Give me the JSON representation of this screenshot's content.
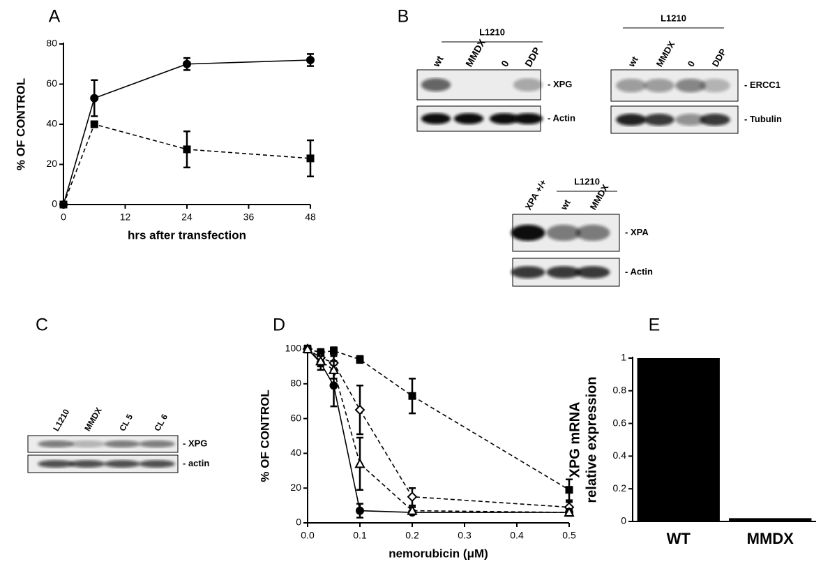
{
  "chart_data": [
    {
      "type": "line",
      "panel": "A",
      "xlabel": "hrs after transfection",
      "ylabel": "% OF CONTROL",
      "x": [
        0,
        6,
        24,
        48
      ],
      "xlim": [
        0,
        48
      ],
      "xticks": [
        0,
        12,
        24,
        36,
        48
      ],
      "ylim": [
        0,
        80
      ],
      "yticks": [
        0,
        20,
        40,
        60,
        80
      ],
      "series": [
        {
          "marker": "circle",
          "dashed": false,
          "color": "#000000",
          "values": [
            0,
            53,
            70,
            72
          ],
          "errors": [
            0,
            9,
            3,
            3
          ]
        },
        {
          "marker": "square",
          "dashed": true,
          "color": "#000000",
          "values": [
            0,
            40,
            27.5,
            23
          ],
          "errors": [
            0,
            0,
            9,
            9
          ]
        }
      ]
    },
    {
      "type": "line",
      "panel": "D",
      "xlabel": "nemorubicin (μM)",
      "ylabel": "% OF CONTROL",
      "x": [
        0,
        0.025,
        0.05,
        0.1,
        0.2,
        0.5
      ],
      "xlim": [
        0,
        0.5
      ],
      "xticks": [
        {
          "value": 0,
          "label": "0.0"
        },
        0.1,
        0.2,
        0.3,
        0.4,
        0.5
      ],
      "ylim": [
        0,
        100
      ],
      "yticks": [
        0,
        20,
        40,
        60,
        80,
        100
      ],
      "series": [
        {
          "marker": "circle",
          "dashed": false,
          "color": "#000000",
          "values": [
            100,
            92,
            79,
            7,
            6,
            6
          ],
          "errors": [
            2,
            4,
            12,
            4,
            1,
            1
          ]
        },
        {
          "marker": "square",
          "dashed": true,
          "color": "#000000",
          "values": [
            100,
            98,
            99,
            94,
            73,
            19
          ],
          "errors": [
            1,
            2,
            2,
            2,
            10,
            6
          ]
        },
        {
          "marker": "diamond",
          "dashed": true,
          "color": "#000000",
          "values": [
            100,
            95,
            92,
            65,
            15,
            9
          ],
          "errors": [
            1,
            3,
            4,
            14,
            5,
            3
          ]
        },
        {
          "marker": "triangle",
          "dashed": true,
          "color": "#000000",
          "values": [
            100,
            93,
            88,
            34,
            7,
            6
          ],
          "errors": [
            1,
            3,
            5,
            15,
            2,
            2
          ]
        }
      ]
    },
    {
      "type": "bar",
      "panel": "E",
      "ylabel": [
        "XPG mRNA",
        "relative expression"
      ],
      "categories": [
        "WT",
        "MMDX"
      ],
      "values": [
        1,
        0.02
      ],
      "color": "#000000",
      "ylim": [
        0,
        1
      ],
      "yticks": [
        0,
        0.2,
        0.4,
        0.6,
        0.8,
        1
      ]
    }
  ],
  "blots": [
    {
      "panel": "B",
      "group": "L1210",
      "lanes": [
        "wt",
        "MMDX",
        "0",
        "DDP"
      ],
      "bands": [
        "- XPG",
        "- Actin"
      ]
    },
    {
      "group": "L1210",
      "lanes": [
        "wt",
        "MMDX",
        "0",
        "DDP"
      ],
      "bands": [
        "- ERCC1",
        "- Tubulin"
      ]
    },
    {
      "group": "L1210",
      "lanes": [
        "XPA +/+",
        "wt",
        "MMDX"
      ],
      "bands": [
        "- XPA",
        "- Actin"
      ]
    },
    {
      "panel": "C",
      "lanes": [
        "L1210",
        "MMDX",
        "CL 5",
        "CL 6"
      ],
      "bands": [
        "- XPG",
        "- actin"
      ]
    }
  ]
}
